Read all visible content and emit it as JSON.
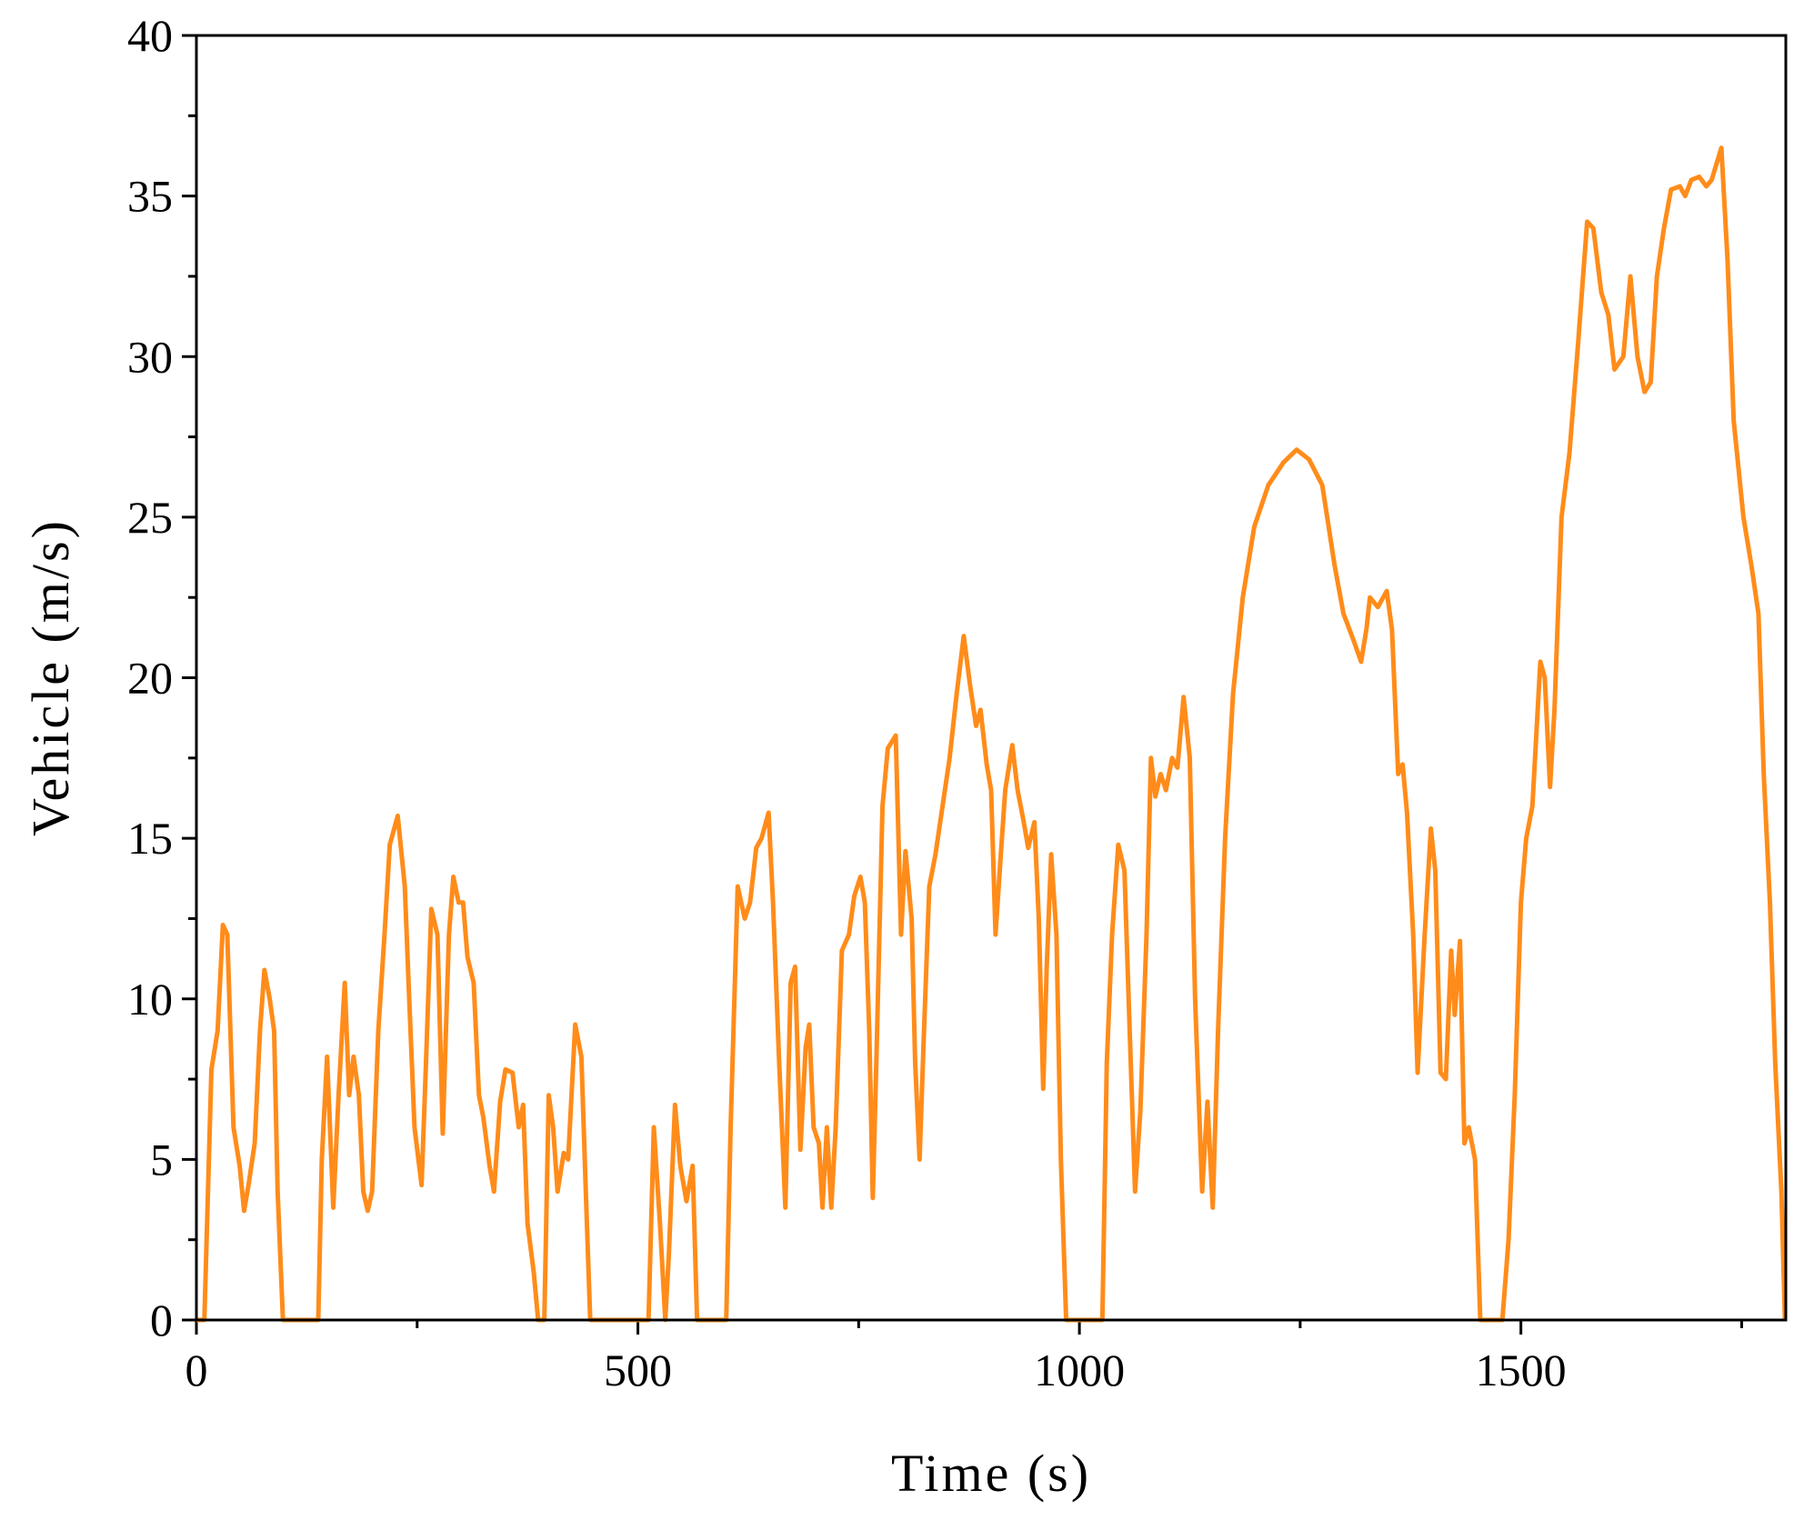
{
  "chart_data": {
    "type": "line",
    "xlabel": "Time (s)",
    "ylabel": "Vehicle (m/s)",
    "color": "#ff8c1a",
    "xlim": [
      0,
      1800
    ],
    "xticks": [
      0,
      500,
      1000,
      1500
    ],
    "ylim": [
      0,
      40
    ],
    "yticks": [
      0,
      5,
      10,
      15,
      20,
      25,
      30,
      35,
      40
    ],
    "grid": false,
    "x": [
      0,
      9,
      17,
      24,
      30,
      35,
      42,
      49,
      54,
      59,
      66,
      72,
      77,
      83,
      88,
      92,
      98,
      138,
      142,
      148,
      155,
      161,
      168,
      173,
      178,
      184,
      189,
      194,
      199,
      206,
      213,
      219,
      228,
      236,
      241,
      247,
      255,
      260,
      266,
      273,
      279,
      286,
      291,
      297,
      302,
      307,
      314,
      320,
      325,
      332,
      337,
      344,
      350,
      358,
      365,
      370,
      375,
      382,
      387,
      394,
      399,
      404,
      409,
      416,
      421,
      429,
      436,
      441,
      446,
      512,
      518,
      525,
      531,
      535,
      542,
      548,
      555,
      562,
      567,
      600,
      605,
      613,
      621,
      627,
      634,
      640,
      648,
      653,
      660,
      667,
      673,
      678,
      684,
      690,
      694,
      699,
      705,
      709,
      714,
      719,
      724,
      731,
      739,
      745,
      752,
      757,
      762,
      766,
      770,
      777,
      783,
      792,
      798,
      803,
      810,
      814,
      819,
      824,
      830,
      837,
      845,
      853,
      861,
      869,
      876,
      883,
      888,
      895,
      900,
      905,
      911,
      916,
      924,
      930,
      937,
      942,
      949,
      954,
      959,
      963,
      968,
      974,
      979,
      985,
      1026,
      1031,
      1037,
      1044,
      1051,
      1056,
      1063,
      1069,
      1076,
      1081,
      1086,
      1092,
      1098,
      1105,
      1111,
      1118,
      1125,
      1131,
      1139,
      1145,
      1151,
      1157,
      1165,
      1174,
      1185,
      1198,
      1214,
      1231,
      1246,
      1260,
      1275,
      1289,
      1299,
      1310,
      1319,
      1325,
      1329,
      1338,
      1348,
      1354,
      1361,
      1366,
      1371,
      1378,
      1383,
      1391,
      1398,
      1403,
      1409,
      1415,
      1421,
      1425,
      1431,
      1436,
      1441,
      1448,
      1454,
      1479,
      1486,
      1493,
      1500,
      1506,
      1513,
      1522,
      1527,
      1533,
      1538,
      1546,
      1555,
      1565,
      1575,
      1582,
      1591,
      1599,
      1606,
      1616,
      1624,
      1632,
      1640,
      1647,
      1654,
      1662,
      1670,
      1680,
      1686,
      1693,
      1702,
      1710,
      1716,
      1727,
      1734,
      1741,
      1752,
      1761,
      1769,
      1775,
      1782,
      1788,
      1795,
      1799
    ],
    "values": [
      0,
      0,
      7.8,
      9,
      12.3,
      12,
      6,
      4.8,
      3.4,
      4.2,
      5.5,
      9,
      10.9,
      10,
      9,
      4,
      0,
      0,
      5,
      8.2,
      3.5,
      7,
      10.5,
      7,
      8.2,
      7,
      4,
      3.4,
      4,
      9,
      12,
      14.8,
      15.7,
      13.5,
      10,
      6,
      4.2,
      8,
      12.8,
      12,
      5.8,
      12,
      13.8,
      13,
      13,
      11.3,
      10.5,
      7,
      6.3,
      4.8,
      4,
      6.8,
      7.8,
      7.7,
      6,
      6.7,
      3,
      1.5,
      0,
      0,
      7,
      6,
      4,
      5.2,
      5,
      9.2,
      8.2,
      4,
      0,
      0,
      6,
      3,
      0,
      2,
      6.7,
      4.8,
      3.7,
      4.8,
      0,
      0,
      6,
      13.5,
      12.5,
      13,
      14.7,
      15,
      15.8,
      13,
      8,
      3.5,
      10.5,
      11,
      5.3,
      8.5,
      9.2,
      6,
      5.5,
      3.5,
      6,
      3.5,
      6,
      11.5,
      12,
      13.2,
      13.8,
      13,
      9,
      3.8,
      8,
      16,
      17.8,
      18.2,
      12,
      14.6,
      12.5,
      8,
      5,
      9,
      13.5,
      14.5,
      16,
      17.5,
      19.5,
      21.3,
      19.8,
      18.5,
      19,
      17.3,
      16.5,
      12,
      14.5,
      16.5,
      17.9,
      16.5,
      15.5,
      14.7,
      15.5,
      12.5,
      7.2,
      11,
      14.5,
      12,
      5,
      0,
      0,
      8,
      12,
      14.8,
      14,
      9.8,
      4,
      6.5,
      12,
      17.5,
      16.3,
      17,
      16.5,
      17.5,
      17.2,
      19.4,
      17.5,
      10,
      4,
      6.8,
      3.5,
      9,
      15,
      19.5,
      22.5,
      24.7,
      26,
      26.7,
      27.1,
      26.8,
      26,
      23.5,
      22,
      21.2,
      20.5,
      21.5,
      22.5,
      22.2,
      22.7,
      21.5,
      17,
      17.3,
      15.8,
      12,
      7.7,
      12,
      15.3,
      14,
      7.7,
      7.5,
      11.5,
      9.5,
      11.8,
      5.5,
      6,
      5,
      0,
      0,
      2.5,
      7,
      13,
      15,
      16,
      20.5,
      20,
      16.6,
      19,
      25,
      27,
      30.5,
      34.2,
      34,
      32,
      31.3,
      29.6,
      30,
      32.5,
      30,
      28.9,
      29.2,
      32.5,
      34,
      35.2,
      35.3,
      35,
      35.5,
      35.6,
      35.3,
      35.5,
      36.5,
      33,
      28,
      25,
      23.5,
      22,
      17,
      13,
      8,
      4,
      0
    ]
  }
}
